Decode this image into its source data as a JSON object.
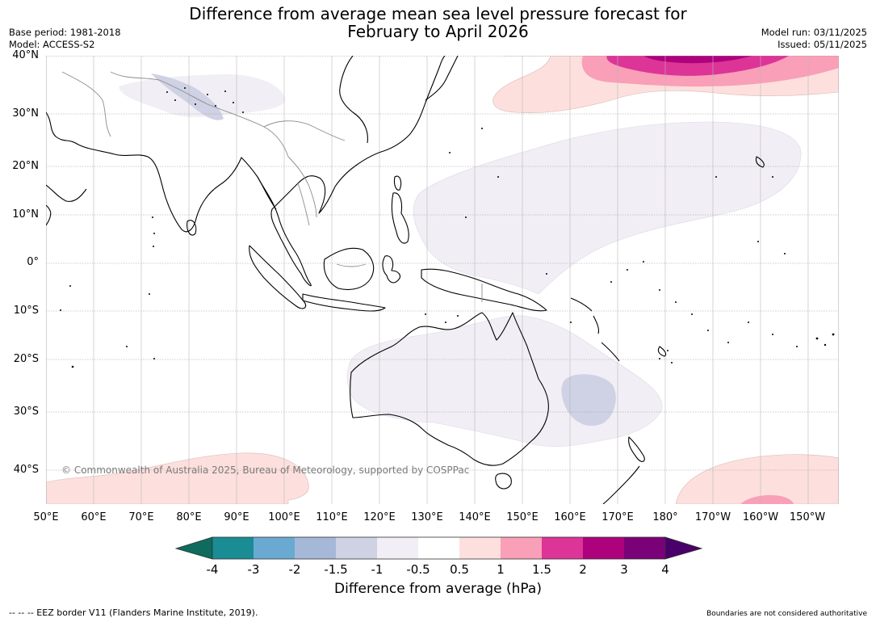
{
  "header": {
    "title_line1": "Difference from average mean sea level pressure forecast for",
    "title_line2": "February to April 2026",
    "base_period": "Base period: 1981-2018",
    "model": "Model: ACCESS-S2",
    "model_run": "Model run: 03/11/2025",
    "issued": "Issued: 05/11/2025"
  },
  "map": {
    "latitude_labels": [
      "40°N",
      "30°N",
      "20°N",
      "10°N",
      "0°",
      "10°S",
      "20°S",
      "30°S",
      "40°S"
    ],
    "longitude_labels": [
      "50°E",
      "60°E",
      "70°E",
      "80°E",
      "90°E",
      "100°E",
      "110°E",
      "120°E",
      "130°E",
      "140°E",
      "150°E",
      "160°E",
      "170°E",
      "180°",
      "170°W",
      "160°W",
      "150°W"
    ],
    "copyright": "© Commonwealth of Australia 2025, Bureau of Meteorology, supported by COSPPac",
    "graticule_color": "#9a9a9a",
    "coastline_color": "#000000",
    "border_color": "#8c8c8c"
  },
  "colorbar": {
    "ticks": [
      "-4",
      "-3",
      "-2",
      "-1.5",
      "-1",
      "-0.5",
      "0.5",
      "1",
      "1.5",
      "2",
      "3",
      "4"
    ],
    "colors": [
      "#1a8c94",
      "#6aaad2",
      "#a6b8d8",
      "#cfd1e4",
      "#f2eef5",
      "#ffffff",
      "#fde0dd",
      "#f99fb8",
      "#dd3497",
      "#ae017e",
      "#7a0177"
    ],
    "low_extension_color": "#0e6b5d",
    "high_extension_color": "#49006a",
    "title": "Difference from average (hPa)"
  },
  "footer": {
    "eez_note": "-- -- -- EEZ border V11 (Flanders Marine Institute, 2019).",
    "boundaries_note": "Boundaries are not considered authoritative"
  }
}
